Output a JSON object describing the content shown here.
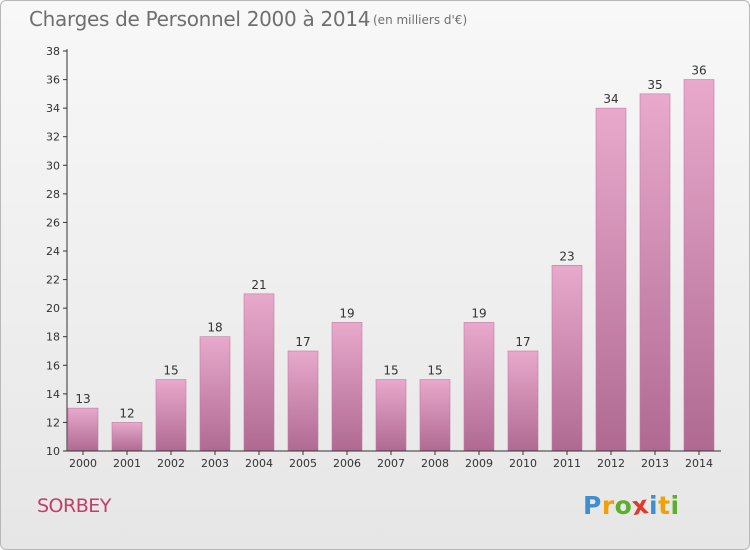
{
  "header": {
    "title": "Charges de Personnel 2000 à 2014",
    "subtitle": "(en milliers d'€)"
  },
  "footer": {
    "commune": "SORBEY",
    "logo": {
      "letters": [
        "P",
        "r",
        "o",
        "x",
        "i",
        "t",
        "i"
      ],
      "colors": [
        "#3d8fd1",
        "#f2a007",
        "#5cae2b",
        "#e23a2a",
        "#3d8fd1",
        "#f2a007",
        "#5cae2b"
      ]
    }
  },
  "chart_data": {
    "type": "bar",
    "title": "Charges de Personnel 2000 à 2014",
    "subtitle": "(en milliers d'€)",
    "categories": [
      "2000",
      "2001",
      "2002",
      "2003",
      "2004",
      "2005",
      "2006",
      "2007",
      "2008",
      "2009",
      "2010",
      "2011",
      "2012",
      "2013",
      "2014"
    ],
    "values": [
      13,
      12,
      15,
      18,
      21,
      17,
      19,
      15,
      15,
      19,
      17,
      23,
      34,
      35,
      36
    ],
    "ylim": [
      10,
      38
    ],
    "yticks": [
      10,
      12,
      14,
      16,
      18,
      20,
      22,
      24,
      26,
      28,
      30,
      32,
      34,
      36,
      38
    ],
    "grid": false,
    "bar_color": "#d98db5"
  }
}
